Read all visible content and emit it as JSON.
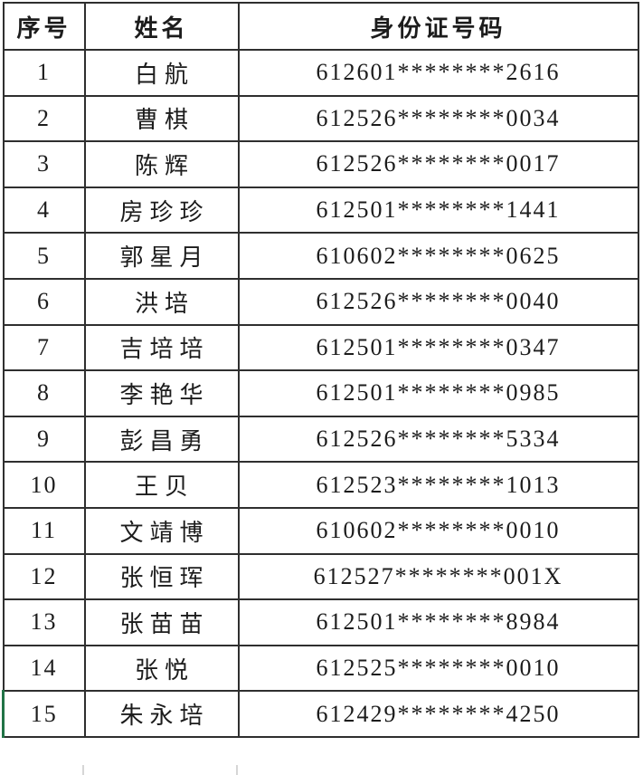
{
  "table": {
    "headers": [
      {
        "label": "序号"
      },
      {
        "label": "姓名"
      },
      {
        "label": "身份证号码"
      }
    ],
    "rows": [
      {
        "serial": "1",
        "name": "白航",
        "id_number": "612601********2616"
      },
      {
        "serial": "2",
        "name": "曹棋",
        "id_number": "612526********0034"
      },
      {
        "serial": "3",
        "name": "陈辉",
        "id_number": "612526********0017"
      },
      {
        "serial": "4",
        "name": "房珍珍",
        "id_number": "612501********1441"
      },
      {
        "serial": "5",
        "name": "郭星月",
        "id_number": "610602********0625"
      },
      {
        "serial": "6",
        "name": "洪培",
        "id_number": "612526********0040"
      },
      {
        "serial": "7",
        "name": "吉培培",
        "id_number": "612501********0347"
      },
      {
        "serial": "8",
        "name": "李艳华",
        "id_number": "612501********0985"
      },
      {
        "serial": "9",
        "name": "彭昌勇",
        "id_number": "612526********5334"
      },
      {
        "serial": "10",
        "name": "王贝",
        "id_number": "612523********1013"
      },
      {
        "serial": "11",
        "name": "文靖博",
        "id_number": "610602********0010"
      },
      {
        "serial": "12",
        "name": "张恒珲",
        "id_number": "612527********001X"
      },
      {
        "serial": "13",
        "name": "张苗苗",
        "id_number": "612501********8984"
      },
      {
        "serial": "14",
        "name": "张悦",
        "id_number": "612525********0010"
      },
      {
        "serial": "15",
        "name": "朱永培",
        "id_number": "612429********4250"
      }
    ]
  },
  "colors": {
    "background": "#ffffff",
    "border": "#2f2f2f",
    "text": "#1c1c1c",
    "selection_green": "#217346",
    "faint_gridline": "#d6d6d6"
  }
}
